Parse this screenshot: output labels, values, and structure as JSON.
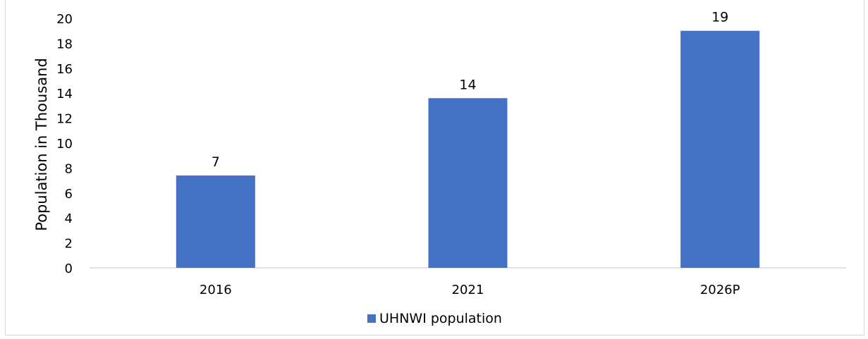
{
  "chart_data": {
    "type": "bar",
    "title": "",
    "xlabel": "",
    "ylabel": "Population in Thousand",
    "ylim": [
      0,
      20
    ],
    "yticks": [
      0,
      2,
      4,
      6,
      8,
      10,
      12,
      14,
      16,
      18,
      20
    ],
    "categories": [
      "2016",
      "2021",
      "2026P"
    ],
    "series": [
      {
        "name": "UHNWI population",
        "values": [
          7.4,
          13.6,
          19.0
        ],
        "data_labels": [
          "7",
          "14",
          "19"
        ],
        "color": "#4472c4"
      }
    ],
    "grid": false,
    "legend": "bottom-center"
  }
}
